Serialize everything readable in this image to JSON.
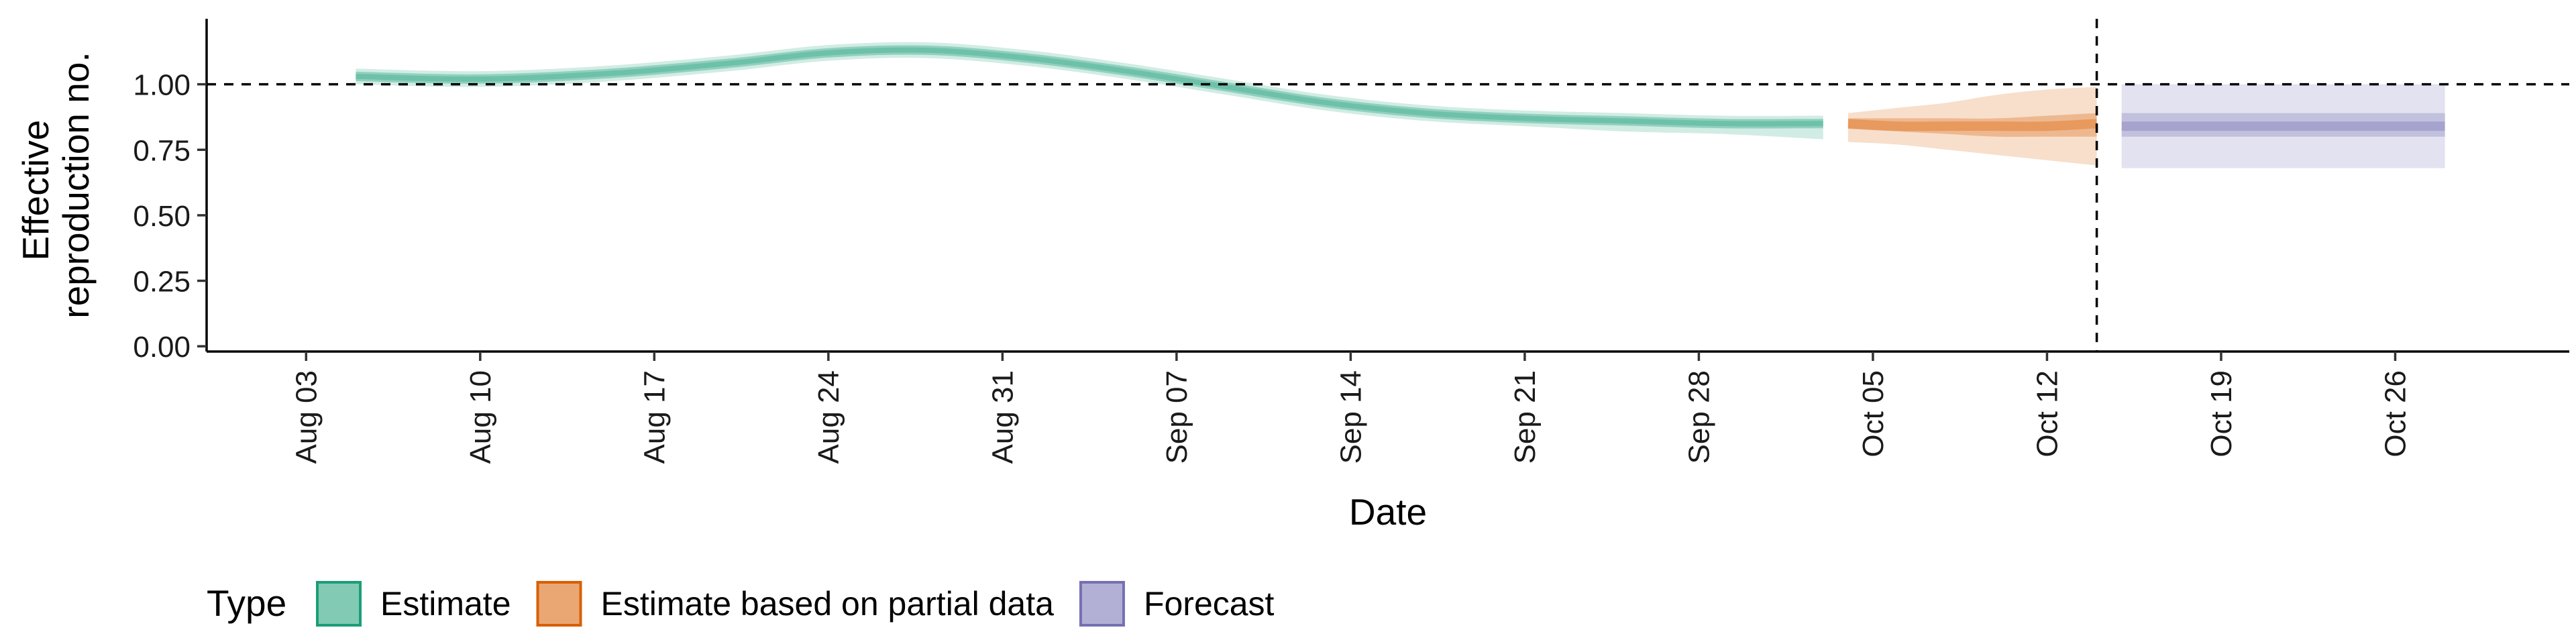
{
  "chart_data": {
    "type": "area",
    "xlabel": "Date",
    "ylabel": [
      "Effective",
      "reproduction no."
    ],
    "x_tick_labels": [
      "Aug 03",
      "Aug 10",
      "Aug 17",
      "Aug 24",
      "Aug 31",
      "Sep 07",
      "Sep 14",
      "Sep 21",
      "Sep 28",
      "Oct 05",
      "Oct 12",
      "Oct 19",
      "Oct 26"
    ],
    "x_tick_dates": [
      "2020-08-03",
      "2020-08-10",
      "2020-08-17",
      "2020-08-24",
      "2020-08-31",
      "2020-09-07",
      "2020-09-14",
      "2020-09-21",
      "2020-09-28",
      "2020-10-05",
      "2020-10-12",
      "2020-10-19",
      "2020-10-26"
    ],
    "xlim": [
      "2020-07-30",
      "2020-11-02"
    ],
    "y_ticks": [
      0.0,
      0.25,
      0.5,
      0.75,
      1.0
    ],
    "y_tick_labels": [
      "0.00",
      "0.25",
      "0.50",
      "0.75",
      "1.00"
    ],
    "ylim": [
      -0.02,
      1.25
    ],
    "reference_line_y": 1.0,
    "reference_line_date": "2020-10-14",
    "grid": false,
    "legend": {
      "title": "Type",
      "position": "bottom-left",
      "items": [
        "Estimate",
        "Estimate based on partial data",
        "Forecast"
      ]
    },
    "colors": {
      "Estimate": "#1b9e77",
      "Estimate based on partial data": "#d95f02",
      "Forecast": "#7570b3",
      "reference": "#000000"
    },
    "series": [
      {
        "name": "Estimate",
        "date": [
          "2020-08-05",
          "2020-08-10",
          "2020-08-15",
          "2020-08-20",
          "2020-08-24",
          "2020-08-28",
          "2020-09-01",
          "2020-09-05",
          "2020-09-09",
          "2020-09-13",
          "2020-09-17",
          "2020-09-21",
          "2020-09-25",
          "2020-09-29",
          "2020-10-03"
        ],
        "median": [
          1.03,
          1.02,
          1.04,
          1.08,
          1.12,
          1.13,
          1.1,
          1.05,
          0.99,
          0.93,
          0.89,
          0.87,
          0.86,
          0.85,
          0.85
        ],
        "lower_50": [
          1.02,
          1.01,
          1.03,
          1.07,
          1.11,
          1.12,
          1.09,
          1.04,
          0.98,
          0.92,
          0.88,
          0.86,
          0.85,
          0.84,
          0.84
        ],
        "upper_50": [
          1.04,
          1.03,
          1.05,
          1.09,
          1.13,
          1.14,
          1.11,
          1.06,
          1.0,
          0.94,
          0.9,
          0.88,
          0.87,
          0.86,
          0.86
        ],
        "lower_90": [
          1.0,
          0.99,
          1.01,
          1.05,
          1.09,
          1.1,
          1.07,
          1.02,
          0.96,
          0.9,
          0.86,
          0.84,
          0.82,
          0.81,
          0.79
        ],
        "upper_90": [
          1.06,
          1.05,
          1.07,
          1.11,
          1.15,
          1.16,
          1.13,
          1.08,
          1.02,
          0.96,
          0.92,
          0.9,
          0.89,
          0.88,
          0.88
        ]
      },
      {
        "name": "Estimate based on partial data",
        "date": [
          "2020-10-04",
          "2020-10-06",
          "2020-10-08",
          "2020-10-10",
          "2020-10-12",
          "2020-10-14"
        ],
        "median": [
          0.85,
          0.84,
          0.84,
          0.84,
          0.84,
          0.85
        ],
        "lower_50": [
          0.83,
          0.82,
          0.81,
          0.8,
          0.8,
          0.8
        ],
        "upper_50": [
          0.87,
          0.87,
          0.87,
          0.87,
          0.88,
          0.89
        ],
        "lower_90": [
          0.78,
          0.77,
          0.75,
          0.73,
          0.71,
          0.69
        ],
        "upper_90": [
          0.89,
          0.91,
          0.93,
          0.96,
          0.98,
          0.99
        ]
      },
      {
        "name": "Forecast",
        "date": [
          "2020-10-15",
          "2020-10-28"
        ],
        "median": [
          0.84,
          0.84
        ],
        "lower_50": [
          0.8,
          0.8
        ],
        "upper_50": [
          0.89,
          0.89
        ],
        "lower_90": [
          0.68,
          0.68
        ],
        "upper_90": [
          1.0,
          1.0
        ]
      }
    ]
  }
}
